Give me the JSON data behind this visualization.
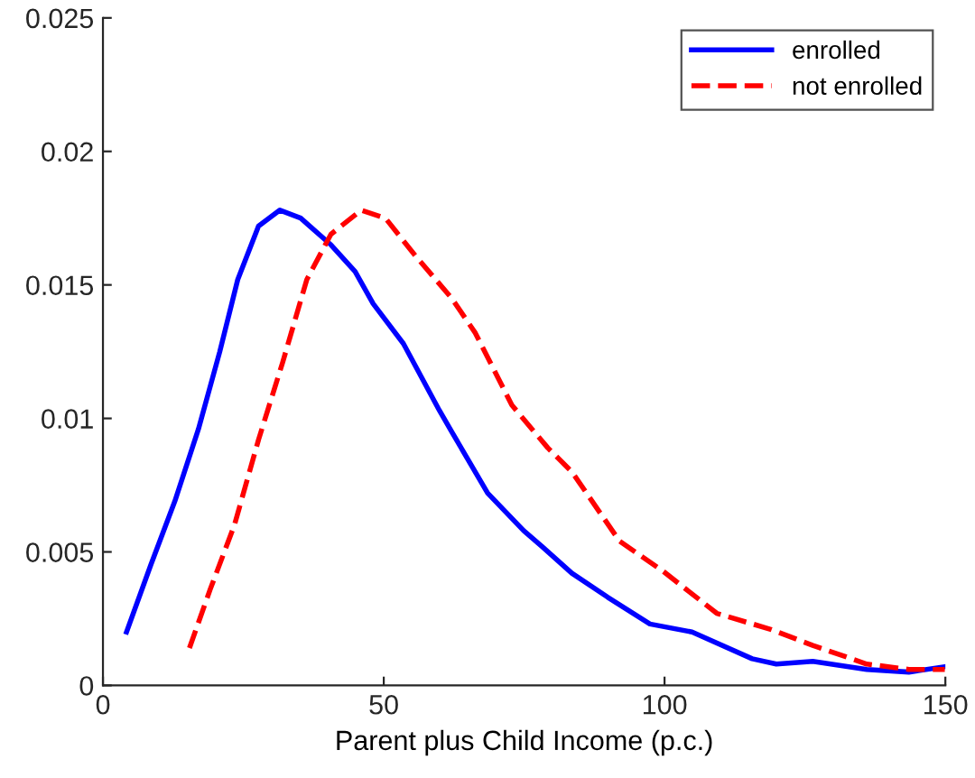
{
  "chart_data": {
    "type": "line",
    "xlabel": "Parent plus Child Income (p.c.)",
    "xlim": [
      0,
      150
    ],
    "xticks": [
      0,
      50,
      100,
      150
    ],
    "ylim": [
      0,
      0.025
    ],
    "yticks": [
      0,
      0.005,
      0.01,
      0.015,
      0.02,
      0.025
    ],
    "grid": false,
    "legend": "top right",
    "series": [
      {
        "name": "enrolled",
        "color": "#0000ff",
        "line_style": "solid",
        "x": [
          4.2,
          8.5,
          12.8,
          17.0,
          20.8,
          24.0,
          27.7,
          31.5,
          35.2,
          40.6,
          44.9,
          48.1,
          53.5,
          59.9,
          62.1,
          68.5,
          74.9,
          78.2,
          83.5,
          89.9,
          97.4,
          104.9,
          115.6,
          119.9,
          126.4,
          136.0,
          143.5,
          149.9
        ],
        "values": [
          0.002,
          0.0045,
          0.0069,
          0.0096,
          0.0125,
          0.0152,
          0.0172,
          0.0178,
          0.0175,
          0.0165,
          0.0155,
          0.0143,
          0.0128,
          0.0103,
          0.0095,
          0.0072,
          0.0058,
          0.0052,
          0.0042,
          0.0033,
          0.0023,
          0.002,
          0.001,
          0.0008,
          0.0009,
          0.0006,
          0.0005,
          0.0007
        ]
      },
      {
        "name": "not enrolled",
        "color": "#ff0000",
        "line_style": "dashed",
        "x": [
          15.4,
          19.1,
          23.4,
          27.7,
          32.0,
          36.3,
          40.6,
          46.0,
          50.3,
          55.6,
          62.1,
          66.3,
          72.8,
          79.2,
          83.5,
          92.0,
          99.6,
          109.3,
          118.9,
          126.4,
          136.0,
          143.5,
          149.9
        ],
        "values": [
          0.0014,
          0.0036,
          0.006,
          0.0092,
          0.0121,
          0.0152,
          0.0169,
          0.0178,
          0.0175,
          0.0161,
          0.0145,
          0.0132,
          0.0105,
          0.0089,
          0.008,
          0.0054,
          0.0043,
          0.0027,
          0.0021,
          0.0015,
          0.0008,
          0.0006,
          0.0006
        ]
      }
    ]
  }
}
